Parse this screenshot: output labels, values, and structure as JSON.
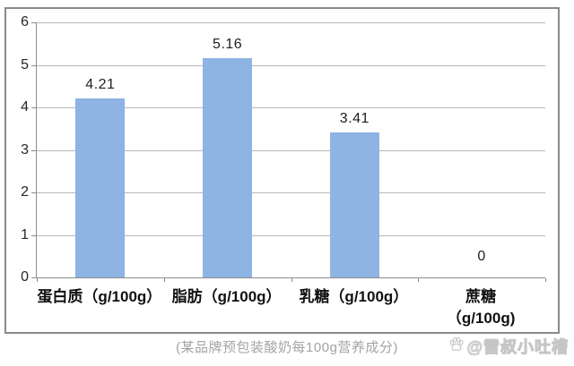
{
  "chart_data": {
    "type": "bar",
    "categories": [
      {
        "line1": "蛋白质（g/100g）",
        "line2": ""
      },
      {
        "line1": "脂肪（g/100g）",
        "line2": ""
      },
      {
        "line1": "乳糖（g/100g）",
        "line2": ""
      },
      {
        "line1": "蔗糖",
        "line2": "（g/100g)"
      }
    ],
    "values": [
      4.21,
      5.16,
      3.41,
      0
    ],
    "data_labels": [
      "4.21",
      "5.16",
      "3.41",
      "0"
    ],
    "title": "",
    "xlabel": "",
    "ylabel": "",
    "ylim": [
      0,
      6
    ],
    "ytick_step": 1,
    "yticks": [
      "0",
      "1",
      "2",
      "3",
      "4",
      "5",
      "6"
    ],
    "grid": true,
    "legend": false,
    "bar_color": "#8db4e2",
    "gridline_color": "#b8b8b8",
    "axis_color": "#8c8c8c",
    "frame_border_color": "#8a8a8a"
  },
  "caption": "(某品牌预包装酸奶每100g营养成分)",
  "watermark": {
    "icon": "baidu-paw-icon",
    "text": "@雷叔小吐槽"
  }
}
